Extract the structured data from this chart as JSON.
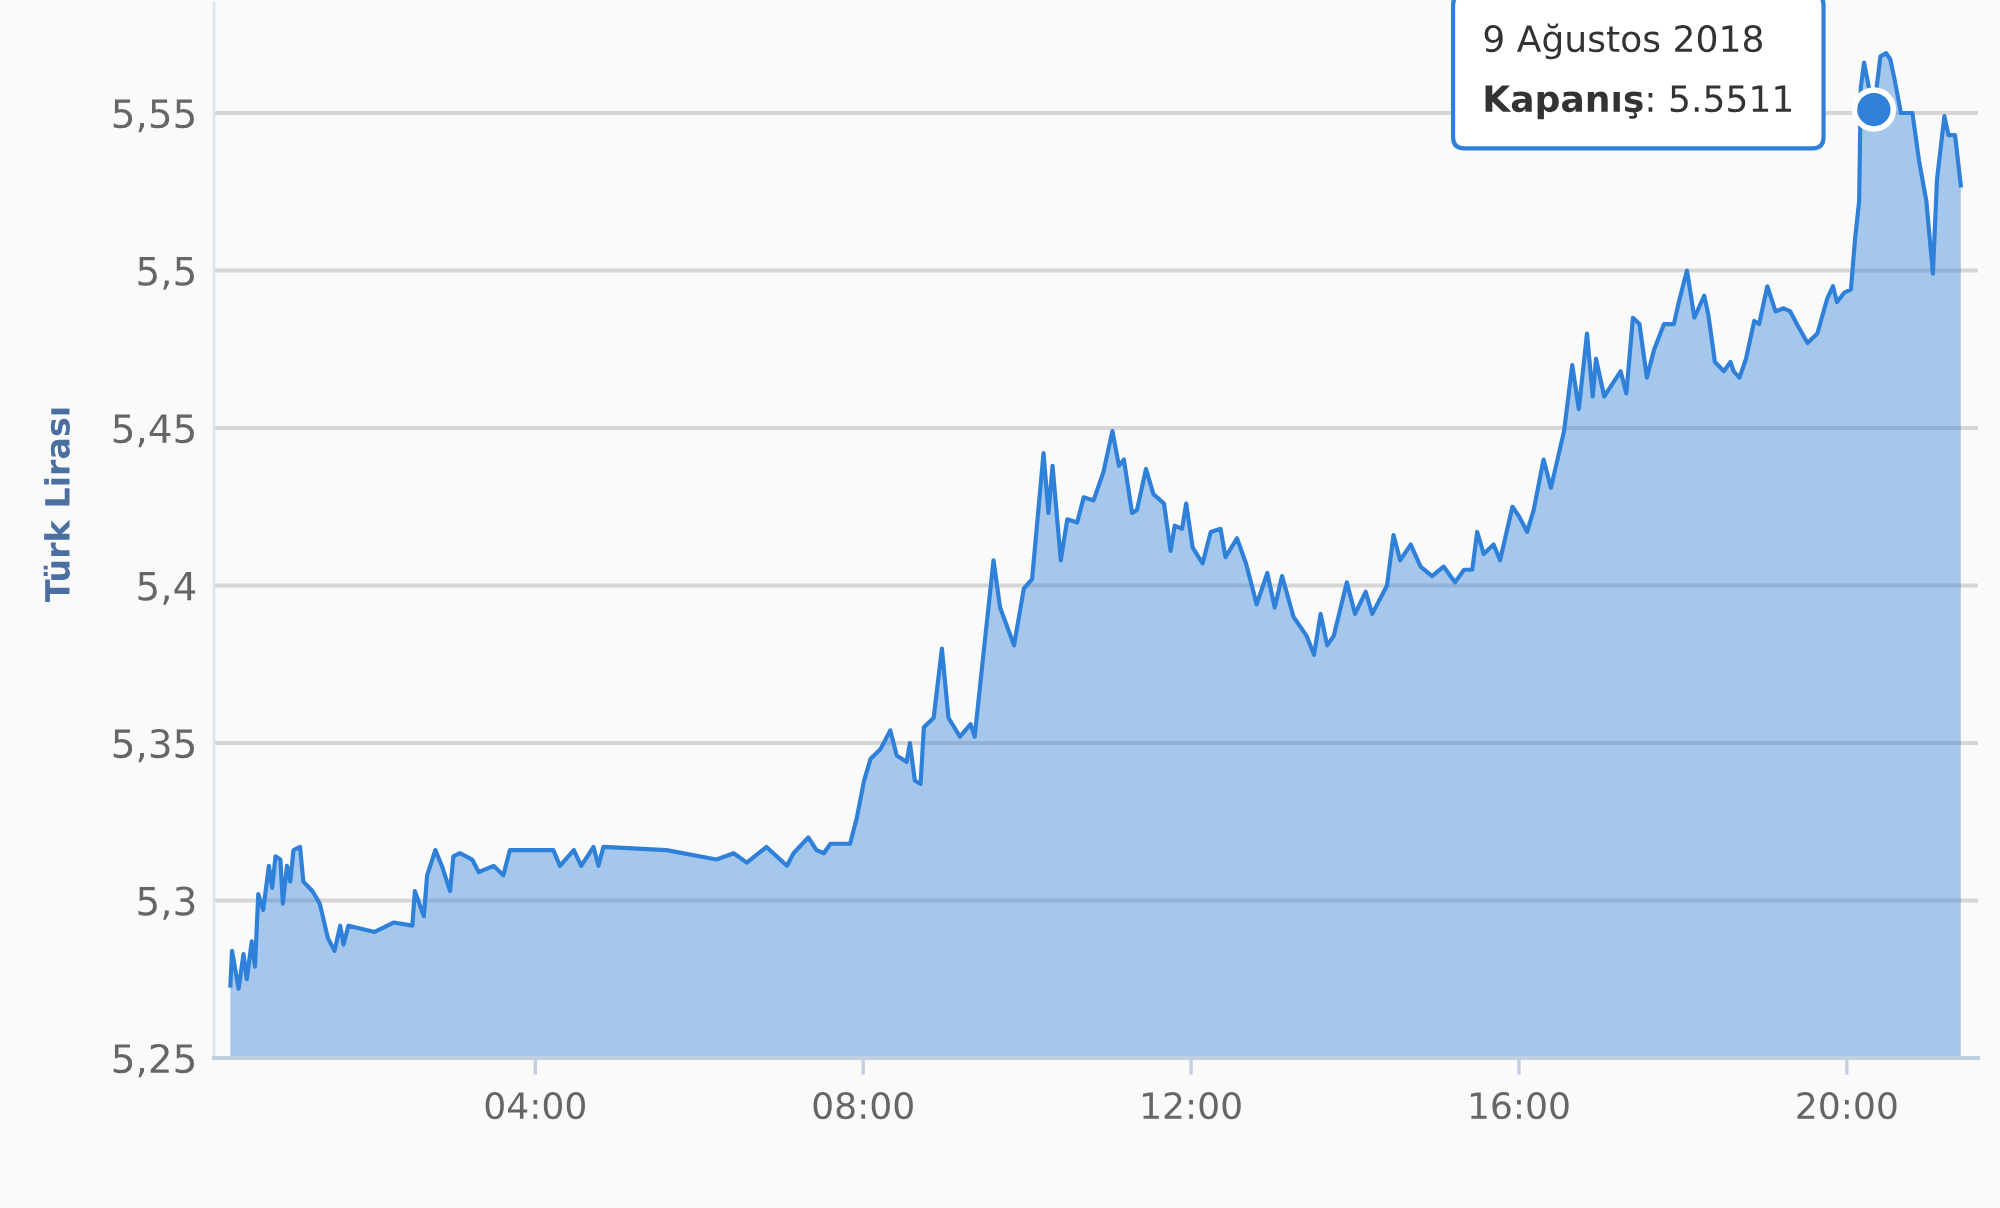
{
  "chart_data": {
    "type": "area",
    "ylabel": "Türk Lirası",
    "x": [
      0.28,
      0.3,
      0.38,
      0.44,
      0.48,
      0.54,
      0.58,
      0.62,
      0.68,
      0.75,
      0.79,
      0.83,
      0.89,
      0.92,
      0.97,
      1.01,
      1.05,
      1.13,
      1.17,
      1.28,
      1.37,
      1.47,
      1.55,
      1.62,
      1.66,
      1.72,
      2.04,
      2.27,
      2.5,
      2.53,
      2.64,
      2.68,
      2.78,
      2.86,
      2.96,
      3.0,
      3.08,
      3.23,
      3.31,
      3.49,
      3.61,
      3.69,
      4.22,
      4.3,
      4.47,
      4.56,
      4.71,
      4.77,
      4.83,
      5.6,
      6.21,
      6.42,
      6.58,
      6.82,
      7.07,
      7.15,
      7.33,
      7.43,
      7.52,
      7.6,
      7.84,
      7.92,
      8.01,
      8.09,
      8.21,
      8.33,
      8.41,
      8.53,
      8.57,
      8.63,
      8.7,
      8.74,
      8.86,
      8.96,
      9.04,
      9.18,
      9.31,
      9.36,
      9.47,
      9.59,
      9.67,
      9.84,
      9.96,
      10.06,
      10.2,
      10.26,
      10.31,
      10.41,
      10.49,
      10.61,
      10.69,
      10.81,
      10.93,
      11.04,
      11.12,
      11.18,
      11.28,
      11.34,
      11.45,
      11.54,
      11.67,
      11.75,
      11.8,
      11.89,
      11.94,
      12.02,
      12.14,
      12.24,
      12.36,
      12.42,
      12.56,
      12.67,
      12.8,
      12.93,
      13.02,
      13.11,
      13.25,
      13.41,
      13.5,
      13.58,
      13.66,
      13.74,
      13.9,
      14.0,
      14.13,
      14.21,
      14.39,
      14.47,
      14.55,
      14.68,
      14.8,
      14.94,
      15.08,
      15.22,
      15.33,
      15.43,
      15.49,
      15.57,
      15.69,
      15.77,
      15.92,
      16.0,
      16.1,
      16.18,
      16.3,
      16.39,
      16.55,
      16.65,
      16.73,
      16.83,
      16.9,
      16.94,
      17.04,
      17.14,
      17.24,
      17.31,
      17.39,
      17.47,
      17.56,
      17.65,
      17.77,
      17.89,
      17.95,
      18.05,
      18.14,
      18.26,
      18.31,
      18.39,
      18.5,
      18.58,
      18.62,
      18.69,
      18.77,
      18.87,
      18.93,
      19.03,
      19.13,
      19.23,
      19.31,
      19.39,
      19.52,
      19.64,
      19.76,
      19.83,
      19.88,
      19.97,
      20.05,
      20.1,
      20.15,
      20.17,
      20.21,
      20.27,
      20.33,
      20.41,
      20.48,
      20.53,
      20.58,
      20.66,
      20.8,
      20.88,
      20.97,
      21.05,
      21.1,
      21.19,
      21.24,
      21.32,
      21.39
    ],
    "series": [
      {
        "color": "#2f80d8",
        "values": [
          5.273,
          5.284,
          5.272,
          5.283,
          5.275,
          5.287,
          5.279,
          5.302,
          5.297,
          5.311,
          5.304,
          5.314,
          5.313,
          5.299,
          5.311,
          5.306,
          5.316,
          5.317,
          5.306,
          5.303,
          5.299,
          5.288,
          5.284,
          5.292,
          5.286,
          5.292,
          5.29,
          5.293,
          5.292,
          5.303,
          5.295,
          5.308,
          5.316,
          5.311,
          5.303,
          5.314,
          5.315,
          5.313,
          5.309,
          5.311,
          5.308,
          5.316,
          5.316,
          5.311,
          5.316,
          5.311,
          5.317,
          5.311,
          5.317,
          5.316,
          5.313,
          5.315,
          5.312,
          5.317,
          5.311,
          5.315,
          5.32,
          5.316,
          5.315,
          5.318,
          5.318,
          5.326,
          5.338,
          5.345,
          5.348,
          5.354,
          5.346,
          5.344,
          5.35,
          5.338,
          5.337,
          5.355,
          5.358,
          5.38,
          5.358,
          5.352,
          5.356,
          5.352,
          5.379,
          5.408,
          5.393,
          5.381,
          5.399,
          5.402,
          5.442,
          5.423,
          5.438,
          5.408,
          5.421,
          5.42,
          5.428,
          5.427,
          5.436,
          5.449,
          5.438,
          5.44,
          5.423,
          5.424,
          5.437,
          5.429,
          5.426,
          5.411,
          5.419,
          5.418,
          5.426,
          5.412,
          5.407,
          5.417,
          5.418,
          5.409,
          5.415,
          5.407,
          5.394,
          5.404,
          5.393,
          5.403,
          5.39,
          5.384,
          5.378,
          5.391,
          5.381,
          5.384,
          5.401,
          5.391,
          5.398,
          5.391,
          5.4,
          5.416,
          5.408,
          5.413,
          5.406,
          5.403,
          5.406,
          5.401,
          5.405,
          5.405,
          5.417,
          5.41,
          5.413,
          5.408,
          5.425,
          5.422,
          5.417,
          5.424,
          5.44,
          5.431,
          5.449,
          5.47,
          5.456,
          5.48,
          5.46,
          5.472,
          5.46,
          5.464,
          5.468,
          5.461,
          5.485,
          5.483,
          5.466,
          5.475,
          5.483,
          5.483,
          5.49,
          5.5,
          5.485,
          5.492,
          5.486,
          5.471,
          5.468,
          5.471,
          5.468,
          5.466,
          5.472,
          5.484,
          5.483,
          5.495,
          5.487,
          5.488,
          5.487,
          5.483,
          5.477,
          5.48,
          5.491,
          5.495,
          5.49,
          5.493,
          5.494,
          5.51,
          5.522,
          5.558,
          5.566,
          5.558,
          5.551,
          5.568,
          5.569,
          5.567,
          5.561,
          5.55,
          5.55,
          5.535,
          5.522,
          5.499,
          5.529,
          5.549,
          5.543,
          5.543,
          5.527
        ]
      }
    ],
    "xlim": [
      0.08,
      21.6
    ],
    "ylim": [
      5.25,
      5.585
    ],
    "xticks": [
      {
        "value": 4,
        "label": "04:00"
      },
      {
        "value": 8,
        "label": "08:00"
      },
      {
        "value": 12,
        "label": "12:00"
      },
      {
        "value": 16,
        "label": "16:00"
      },
      {
        "value": 20,
        "label": "20:00"
      }
    ],
    "yticks": [
      {
        "value": 5.25,
        "label": "5,25"
      },
      {
        "value": 5.3,
        "label": "5,3"
      },
      {
        "value": 5.35,
        "label": "5,35"
      },
      {
        "value": 5.4,
        "label": "5,4"
      },
      {
        "value": 5.45,
        "label": "5,45"
      },
      {
        "value": 5.5,
        "label": "5,5"
      },
      {
        "value": 5.55,
        "label": "5,55"
      }
    ],
    "grid": "y",
    "annotations": [
      {
        "text": "9 Ağustos 2018\nKapanış: 5.5511",
        "x": 20.33,
        "y": 5.5511
      }
    ]
  }
}
